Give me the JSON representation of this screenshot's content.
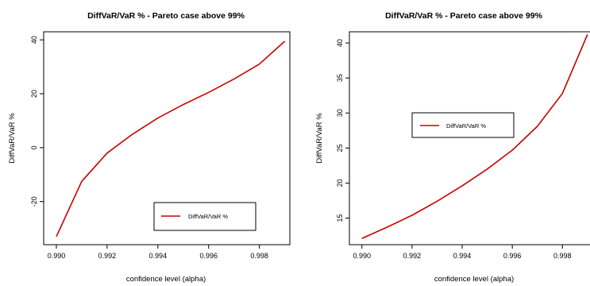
{
  "chart_data": [
    {
      "type": "line",
      "title": "DiffVaR/VaR %  - Pareto case above 99%",
      "xlabel": "confidence level (alpha)",
      "ylabel": "DiffVaR/VaR %",
      "xlim": [
        0.9895,
        0.9992
      ],
      "ylim": [
        -36,
        43
      ],
      "xticks": [
        "0.990",
        "0.992",
        "0.994",
        "0.996",
        "0.998"
      ],
      "yticks": [
        "-20",
        "0",
        "20",
        "40"
      ],
      "legend_position": "bottom-right",
      "line_color": "#cc0000",
      "series": [
        {
          "name": "DiffVaR/VaR %",
          "x": [
            0.99,
            0.991,
            0.992,
            0.993,
            0.994,
            0.995,
            0.996,
            0.997,
            0.998,
            0.999
          ],
          "values": [
            -33,
            -12.5,
            -2,
            5,
            11,
            16,
            20.5,
            25.5,
            31,
            39.5
          ]
        }
      ]
    },
    {
      "type": "line",
      "title": "DiffVaR/VaR %  - Pareto case above 99%",
      "xlabel": "confidence level (alpha)",
      "ylabel": "DiffVaR/VaR %",
      "xlim": [
        0.9895,
        0.9991
      ],
      "ylim": [
        11.2,
        41.6
      ],
      "xticks": [
        "0.990",
        "0.992",
        "0.994",
        "0.996",
        "0.998"
      ],
      "yticks": [
        "15",
        "20",
        "25",
        "30",
        "35",
        "40"
      ],
      "legend_position": "top-left",
      "line_color": "#cc0000",
      "series": [
        {
          "name": "DiffVaR/VaR %",
          "x": [
            0.99,
            0.991,
            0.992,
            0.993,
            0.994,
            0.995,
            0.996,
            0.997,
            0.998,
            0.999
          ],
          "values": [
            12.1,
            13.7,
            15.4,
            17.4,
            19.6,
            22.0,
            24.7,
            28.1,
            32.8,
            41.2
          ]
        }
      ]
    }
  ]
}
